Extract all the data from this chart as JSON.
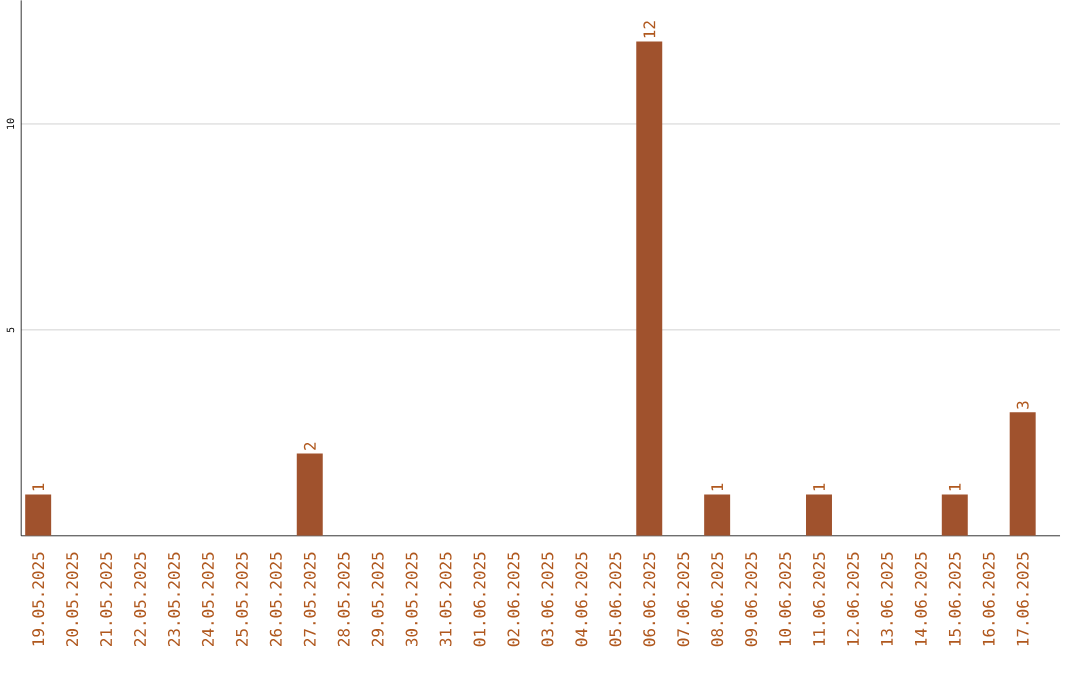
{
  "chart_data": {
    "type": "bar",
    "categories": [
      "19.05.2025",
      "20.05.2025",
      "21.05.2025",
      "22.05.2025",
      "23.05.2025",
      "24.05.2025",
      "25.05.2025",
      "26.05.2025",
      "27.05.2025",
      "28.05.2025",
      "29.05.2025",
      "30.05.2025",
      "31.05.2025",
      "01.06.2025",
      "02.06.2025",
      "03.06.2025",
      "04.06.2025",
      "05.06.2025",
      "06.06.2025",
      "07.06.2025",
      "08.06.2025",
      "09.06.2025",
      "10.06.2025",
      "11.06.2025",
      "12.06.2025",
      "13.06.2025",
      "14.06.2025",
      "15.06.2025",
      "16.06.2025",
      "17.06.2025"
    ],
    "values": [
      1,
      0,
      0,
      0,
      0,
      0,
      0,
      0,
      2,
      0,
      0,
      0,
      0,
      0,
      0,
      0,
      0,
      0,
      12,
      0,
      1,
      0,
      0,
      1,
      0,
      0,
      0,
      1,
      0,
      3
    ],
    "value_labels": [
      "1",
      null,
      null,
      null,
      null,
      null,
      null,
      null,
      "2",
      null,
      null,
      null,
      null,
      null,
      null,
      null,
      null,
      null,
      "12",
      null,
      "1",
      null,
      null,
      "1",
      null,
      null,
      null,
      "1",
      null,
      "3"
    ],
    "color": "#a0522d",
    "ylim": [
      0,
      13
    ],
    "yticks": [
      5,
      10
    ],
    "grid": "y"
  }
}
